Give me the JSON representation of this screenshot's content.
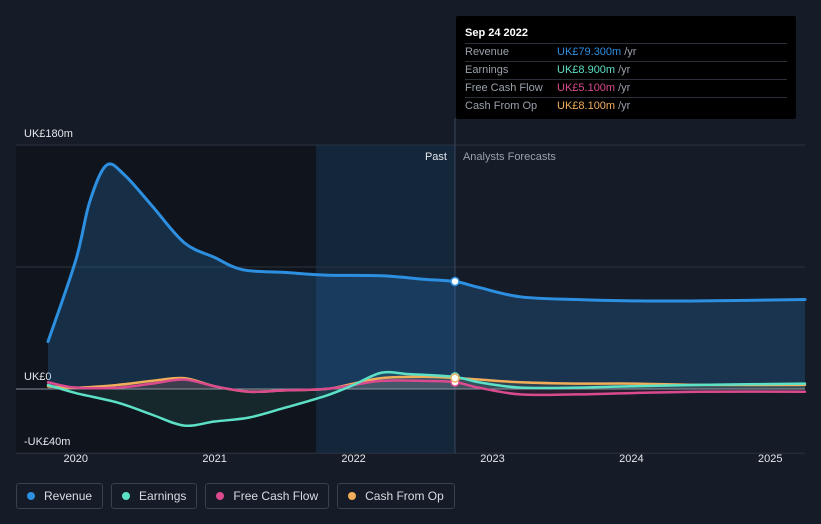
{
  "tooltip": {
    "date": "Sep 24 2022",
    "rows": [
      {
        "label": "Revenue",
        "value": "UK£79.300m",
        "unit": "/yr",
        "color": "#2d8fe0"
      },
      {
        "label": "Earnings",
        "value": "UK£8.900m",
        "unit": "/yr",
        "color": "#5ce0c6"
      },
      {
        "label": "Free Cash Flow",
        "value": "UK£5.100m",
        "unit": "/yr",
        "color": "#d94b8e"
      },
      {
        "label": "Cash From Op",
        "value": "UK£8.100m",
        "unit": "/yr",
        "color": "#f0ad5a"
      }
    ]
  },
  "legend": [
    {
      "label": "Revenue",
      "color": "#2d8fe0"
    },
    {
      "label": "Earnings",
      "color": "#5ce0c6"
    },
    {
      "label": "Free Cash Flow",
      "color": "#d94b8e"
    },
    {
      "label": "Cash From Op",
      "color": "#f0ad5a"
    }
  ],
  "chart_data": {
    "type": "line",
    "title": "",
    "xlabel": "",
    "ylabel": "",
    "xlim": [
      2019.8,
      2025.25
    ],
    "ylim": [
      -40,
      180
    ],
    "y_tick_labels": [
      {
        "value": 180,
        "label": "UK£180m"
      },
      {
        "value": 0,
        "label": "UK£0"
      },
      {
        "value": -40,
        "label": "-UK£40m"
      }
    ],
    "x_ticks": [
      2020,
      2021,
      2022,
      2023,
      2024,
      2025
    ],
    "x_tick_labels": [
      "2020",
      "2021",
      "2022",
      "2023",
      "2024",
      "2025"
    ],
    "past_label": "Past",
    "forecast_label": "Analysts Forecasts",
    "past_boundary_x": 2022.73,
    "highlight_start_x": 2021.73,
    "series": [
      {
        "name": "Revenue",
        "color": "#2d8fe0",
        "fill": true,
        "points": [
          [
            2019.8,
            35
          ],
          [
            2020.0,
            95
          ],
          [
            2020.1,
            138
          ],
          [
            2020.22,
            165
          ],
          [
            2020.35,
            158
          ],
          [
            2020.55,
            135
          ],
          [
            2020.78,
            108
          ],
          [
            2021.0,
            97
          ],
          [
            2021.2,
            88
          ],
          [
            2021.5,
            86
          ],
          [
            2021.8,
            84
          ],
          [
            2022.2,
            83.5
          ],
          [
            2022.5,
            81
          ],
          [
            2022.73,
            79.3
          ],
          [
            2022.9,
            75
          ],
          [
            2023.2,
            68
          ],
          [
            2023.6,
            66
          ],
          [
            2024.0,
            65
          ],
          [
            2024.5,
            65
          ],
          [
            2025.25,
            66
          ]
        ]
      },
      {
        "name": "Earnings",
        "color": "#5ce0c6",
        "fill": false,
        "points": [
          [
            2019.8,
            3
          ],
          [
            2020.0,
            -3
          ],
          [
            2020.3,
            -10
          ],
          [
            2020.55,
            -19
          ],
          [
            2020.78,
            -27
          ],
          [
            2021.0,
            -24
          ],
          [
            2021.25,
            -21
          ],
          [
            2021.5,
            -14
          ],
          [
            2021.8,
            -5
          ],
          [
            2022.0,
            3
          ],
          [
            2022.2,
            12
          ],
          [
            2022.4,
            11
          ],
          [
            2022.73,
            8.9
          ],
          [
            2022.9,
            5
          ],
          [
            2023.2,
            1
          ],
          [
            2023.6,
            1
          ],
          [
            2024.0,
            2
          ],
          [
            2024.5,
            3
          ],
          [
            2025.25,
            4
          ]
        ]
      },
      {
        "name": "Free Cash Flow",
        "color": "#d94b8e",
        "fill": false,
        "points": [
          [
            2019.8,
            5
          ],
          [
            2020.0,
            1
          ],
          [
            2020.3,
            1
          ],
          [
            2020.55,
            4
          ],
          [
            2020.78,
            7
          ],
          [
            2021.0,
            2
          ],
          [
            2021.25,
            -2
          ],
          [
            2021.5,
            -1
          ],
          [
            2021.8,
            0
          ],
          [
            2022.0,
            3
          ],
          [
            2022.2,
            6
          ],
          [
            2022.5,
            6
          ],
          [
            2022.73,
            5.1
          ],
          [
            2022.9,
            1
          ],
          [
            2023.2,
            -4
          ],
          [
            2023.6,
            -4
          ],
          [
            2024.0,
            -3
          ],
          [
            2024.5,
            -2
          ],
          [
            2025.25,
            -2
          ]
        ]
      },
      {
        "name": "Cash From Op",
        "color": "#f0ad5a",
        "fill": false,
        "points": [
          [
            2019.8,
            2
          ],
          [
            2020.0,
            1
          ],
          [
            2020.3,
            3
          ],
          [
            2020.55,
            6
          ],
          [
            2020.78,
            8
          ],
          [
            2021.0,
            2
          ],
          [
            2021.25,
            -2
          ],
          [
            2021.5,
            -1
          ],
          [
            2021.8,
            0
          ],
          [
            2022.0,
            4
          ],
          [
            2022.2,
            8
          ],
          [
            2022.5,
            9
          ],
          [
            2022.73,
            8.1
          ],
          [
            2022.9,
            7
          ],
          [
            2023.2,
            5
          ],
          [
            2023.6,
            4
          ],
          [
            2024.0,
            4
          ],
          [
            2024.5,
            3
          ],
          [
            2025.25,
            3
          ]
        ]
      }
    ]
  }
}
